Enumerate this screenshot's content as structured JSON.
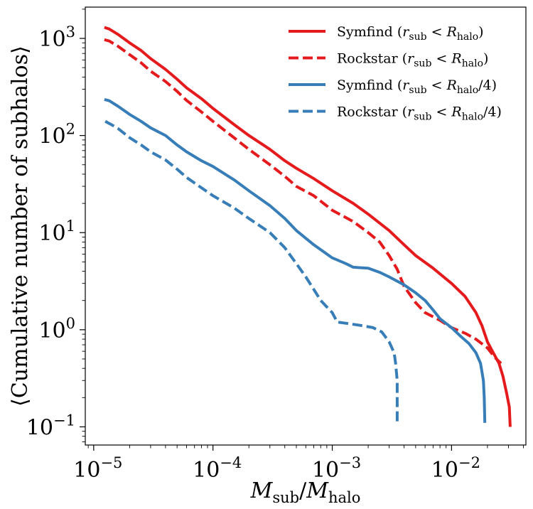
{
  "chart_data": {
    "type": "line",
    "xlabel": "M_sub/M_halo",
    "ylabel": "⟨Cumulative number of subhalos⟩",
    "xscale": "log",
    "yscale": "log",
    "xlim": [
      8.5e-06,
      0.042
    ],
    "ylim": [
      0.065,
      2100
    ],
    "grid": false,
    "legend_position": "top-right",
    "x_ticks": [
      {
        "value": 1e-05,
        "base": "10",
        "exp": "−5"
      },
      {
        "value": 0.0001,
        "base": "10",
        "exp": "−4"
      },
      {
        "value": 0.001,
        "base": "10",
        "exp": "−3"
      },
      {
        "value": 0.01,
        "base": "10",
        "exp": "−2"
      }
    ],
    "y_ticks": [
      {
        "value": 0.1,
        "base": "10",
        "exp": "−1"
      },
      {
        "value": 1,
        "base": "10",
        "exp": "0"
      },
      {
        "value": 10,
        "base": "10",
        "exp": "1"
      },
      {
        "value": 100,
        "base": "10",
        "exp": "2"
      },
      {
        "value": 1000,
        "base": "10",
        "exp": "3"
      }
    ],
    "series": [
      {
        "name": "Symfind (r_sub < R_halo)",
        "color": "#e41a1c",
        "dash": "solid",
        "points": [
          [
            1.23e-05,
            1300
          ],
          [
            1.35e-05,
            1250
          ],
          [
            1.6e-05,
            1100
          ],
          [
            2e-05,
            900
          ],
          [
            2.5e-05,
            750
          ],
          [
            3e-05,
            620
          ],
          [
            4e-05,
            480
          ],
          [
            5e-05,
            380
          ],
          [
            6e-05,
            310
          ],
          [
            8e-05,
            240
          ],
          [
            0.0001,
            190
          ],
          [
            0.00015,
            130
          ],
          [
            0.0002,
            100
          ],
          [
            0.0003,
            72
          ],
          [
            0.0004,
            55
          ],
          [
            0.0005,
            46
          ],
          [
            0.0007,
            36
          ],
          [
            0.001,
            27
          ],
          [
            0.0015,
            20
          ],
          [
            0.002,
            15.5
          ],
          [
            0.003,
            10.5
          ],
          [
            0.004,
            7.5
          ],
          [
            0.005,
            5.8
          ],
          [
            0.007,
            4.3
          ],
          [
            0.01,
            3
          ],
          [
            0.013,
            2.2
          ],
          [
            0.016,
            1.5
          ],
          [
            0.018,
            1.1
          ],
          [
            0.02,
            0.75
          ],
          [
            0.022,
            0.6
          ],
          [
            0.025,
            0.45
          ],
          [
            0.027,
            0.33
          ],
          [
            0.029,
            0.22
          ],
          [
            0.0305,
            0.16
          ],
          [
            0.031,
            0.1
          ]
        ]
      },
      {
        "name": "Rockstar (r_sub < R_halo)",
        "color": "#e41a1c",
        "dash": "dashed",
        "points": [
          [
            1.23e-05,
            970
          ],
          [
            1.35e-05,
            940
          ],
          [
            1.6e-05,
            830
          ],
          [
            2e-05,
            680
          ],
          [
            2.5e-05,
            560
          ],
          [
            3e-05,
            460
          ],
          [
            4e-05,
            360
          ],
          [
            5e-05,
            285
          ],
          [
            6e-05,
            230
          ],
          [
            8e-05,
            175
          ],
          [
            0.0001,
            140
          ],
          [
            0.00015,
            95
          ],
          [
            0.0002,
            72
          ],
          [
            0.0003,
            50
          ],
          [
            0.0004,
            38
          ],
          [
            0.0005,
            30
          ],
          [
            0.0007,
            24
          ],
          [
            0.001,
            17
          ],
          [
            0.0015,
            13
          ],
          [
            0.002,
            10
          ],
          [
            0.0025,
            8
          ],
          [
            0.003,
            5.8
          ],
          [
            0.0035,
            4.2
          ],
          [
            0.004,
            2.8
          ],
          [
            0.005,
            1.9
          ],
          [
            0.006,
            1.5
          ],
          [
            0.008,
            1.25
          ],
          [
            0.01,
            1.05
          ],
          [
            0.013,
            0.92
          ],
          [
            0.016,
            0.8
          ],
          [
            0.02,
            0.65
          ],
          [
            0.023,
            0.52
          ],
          [
            0.026,
            0.45
          ]
        ]
      },
      {
        "name": "Symfind (r_sub < R_halo/4)",
        "color": "#377eb8",
        "dash": "solid",
        "points": [
          [
            1.23e-05,
            235
          ],
          [
            1.35e-05,
            228
          ],
          [
            1.6e-05,
            200
          ],
          [
            2e-05,
            165
          ],
          [
            2.5e-05,
            140
          ],
          [
            3e-05,
            120
          ],
          [
            4e-05,
            100
          ],
          [
            5e-05,
            80
          ],
          [
            6e-05,
            68
          ],
          [
            8e-05,
            55
          ],
          [
            0.0001,
            48
          ],
          [
            0.00015,
            35
          ],
          [
            0.0002,
            27
          ],
          [
            0.0003,
            19
          ],
          [
            0.0004,
            14
          ],
          [
            0.0005,
            10.5
          ],
          [
            0.0007,
            7.5
          ],
          [
            0.001,
            5.5
          ],
          [
            0.0013,
            4.8
          ],
          [
            0.0015,
            4.4
          ],
          [
            0.002,
            4.3
          ],
          [
            0.0025,
            3.9
          ],
          [
            0.003,
            3.5
          ],
          [
            0.004,
            2.9
          ],
          [
            0.005,
            2.4
          ],
          [
            0.006,
            2
          ],
          [
            0.007,
            1.6
          ],
          [
            0.008,
            1.3
          ],
          [
            0.01,
            1.05
          ],
          [
            0.012,
            0.85
          ],
          [
            0.014,
            0.72
          ],
          [
            0.016,
            0.58
          ],
          [
            0.0175,
            0.45
          ],
          [
            0.0185,
            0.3
          ],
          [
            0.0188,
            0.2
          ],
          [
            0.019,
            0.11
          ]
        ]
      },
      {
        "name": "Rockstar (r_sub < R_halo/4)",
        "color": "#377eb8",
        "dash": "dashed",
        "points": [
          [
            1.25e-05,
            140
          ],
          [
            1.4e-05,
            130
          ],
          [
            1.6e-05,
            118
          ],
          [
            2e-05,
            95
          ],
          [
            2.5e-05,
            80
          ],
          [
            3e-05,
            68
          ],
          [
            4e-05,
            56
          ],
          [
            5e-05,
            45
          ],
          [
            6e-05,
            37
          ],
          [
            8e-05,
            29
          ],
          [
            0.0001,
            24
          ],
          [
            0.00015,
            18
          ],
          [
            0.0002,
            14
          ],
          [
            0.0003,
            10
          ],
          [
            0.0004,
            7
          ],
          [
            0.0005,
            4.8
          ],
          [
            0.0006,
            3.5
          ],
          [
            0.0007,
            2.6
          ],
          [
            0.0008,
            2
          ],
          [
            0.001,
            1.5
          ],
          [
            0.0011,
            1.2
          ],
          [
            0.0014,
            1.15
          ],
          [
            0.0018,
            1.1
          ],
          [
            0.0022,
            1.05
          ],
          [
            0.0026,
            0.95
          ],
          [
            0.003,
            0.75
          ],
          [
            0.0033,
            0.58
          ],
          [
            0.0034,
            0.45
          ],
          [
            0.0035,
            0.3
          ],
          [
            0.0035,
            0.2
          ],
          [
            0.0035,
            0.11
          ]
        ]
      }
    ],
    "legend": [
      {
        "base": "Symfind (",
        "r": "r",
        "r_sub": "sub",
        "lt": " < ",
        "R": "R",
        "R_sub": "halo",
        "tail": ")"
      },
      {
        "base": "Rockstar (",
        "r": "r",
        "r_sub": "sub",
        "lt": " < ",
        "R": "R",
        "R_sub": "halo",
        "tail": ")"
      },
      {
        "base": "Symfind (",
        "r": "r",
        "r_sub": "sub",
        "lt": " < ",
        "R": "R",
        "R_sub": "halo",
        "tail": "/4)"
      },
      {
        "base": "Rockstar (",
        "r": "r",
        "r_sub": "sub",
        "lt": " < ",
        "R": "R",
        "R_sub": "halo",
        "tail": "/4)"
      }
    ],
    "xlabel_parts": {
      "M": "M",
      "sub": "sub",
      "slash": "/",
      "M2": "M",
      "halo": "halo"
    }
  }
}
